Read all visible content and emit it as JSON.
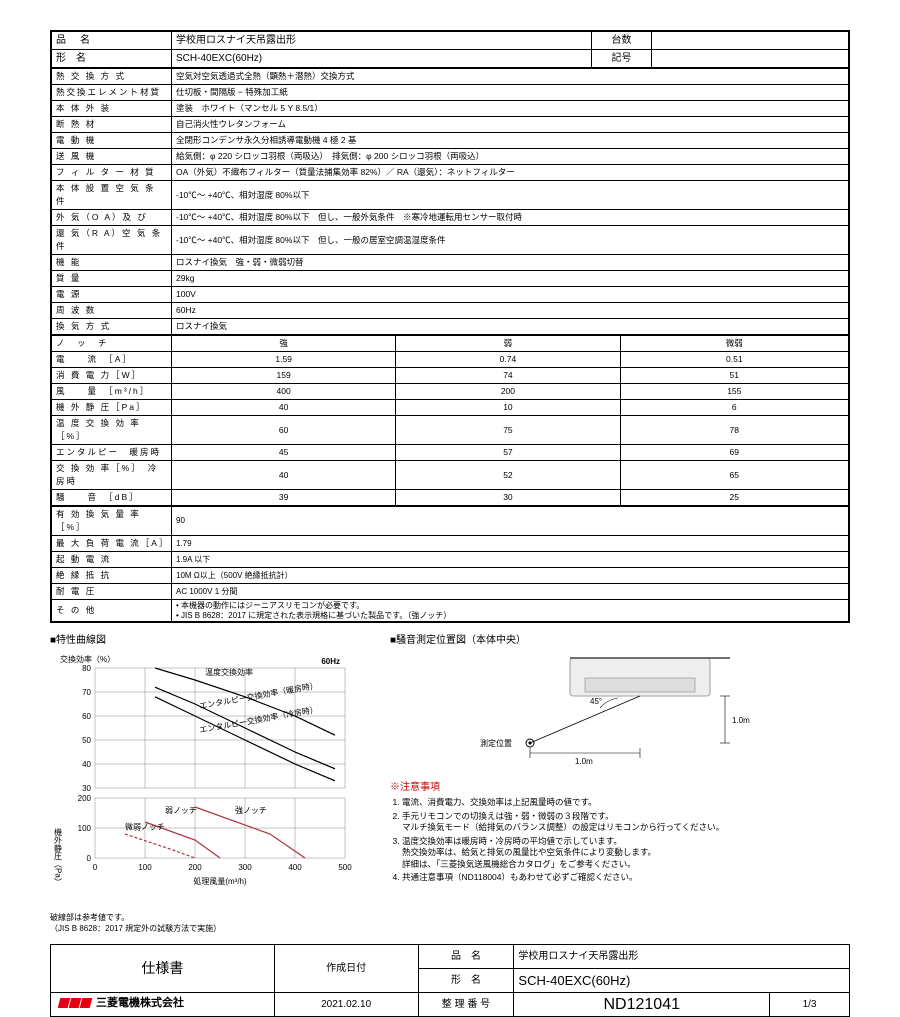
{
  "header": {
    "name_label": "品　名",
    "name": "学校用ロスナイ天吊露出形",
    "qty_label": "台数",
    "model_label": "形　名",
    "model": "SCH-40EXC(60Hz)",
    "mark_label": "記号"
  },
  "specs": [
    {
      "label": "熱 交 換 方 式",
      "value": "空気対空気透過式全熱（顕熱＋潜熱）交換方式"
    },
    {
      "label": "熱交換エレメント材質",
      "value": "仕切板・間隔版 − 特殊加工紙"
    },
    {
      "label": "本 体 外 装",
      "value": "塗装　ホワイト（マンセル 5 Y 8.5/1）"
    },
    {
      "label": "断 熱 材",
      "value": "自己消火性ウレタンフォーム"
    },
    {
      "label": "電 動 機",
      "value": "全閉形コンデンサ永久分相誘導電動機 4 極 2 基"
    },
    {
      "label": "送 風 機",
      "value": "給気側：φ 220 シロッコ羽根（両吸込）　排気側：φ 200 シロッコ羽根（両吸込）"
    },
    {
      "label": "フ ィ ル タ ー 材 質",
      "value": "OA（外気）不織布フィルター（質量法捕集効率 82%）／ RA（還気）：ネットフィルター"
    },
    {
      "label": "本 体 設 置 空 気 条 件",
      "value": "-10℃～ +40℃、相対湿度 80%以下"
    },
    {
      "label": "外 気（O A）及 び",
      "value": "-10℃～ +40℃、相対湿度 80%以下　但し、一般外気条件　※寒冷地運転用センサー取付時"
    },
    {
      "label": "還 気（R A）空 気 条 件",
      "value": "-10℃～ +40℃、相対湿度 80%以下　但し、一般の居室空調温湿度条件"
    },
    {
      "label": "機 能",
      "value": "ロスナイ換気　強・弱・微弱切替"
    },
    {
      "label": "質 量",
      "value": "29kg"
    },
    {
      "label": "電 源",
      "value": "100V"
    },
    {
      "label": "周 波 数",
      "value": "60Hz"
    },
    {
      "label": "換 気 方 式",
      "value": "ロスナイ換気"
    }
  ],
  "notch": {
    "header": [
      "ノ　ッ　チ",
      "強",
      "弱",
      "微弱"
    ],
    "rows": [
      {
        "label": "電　　流　［A］",
        "v": [
          "1.59",
          "0.74",
          "0.51"
        ]
      },
      {
        "label": "消 費 電 力［W］",
        "v": [
          "159",
          "74",
          "51"
        ]
      },
      {
        "label": "風　　量　［m³/h］",
        "v": [
          "400",
          "200",
          "155"
        ]
      },
      {
        "label": "機 外 静 圧［Pa］",
        "v": [
          "40",
          "10",
          "6"
        ]
      },
      {
        "label": "温 度 交 換 効 率　［%］",
        "v": [
          "60",
          "75",
          "78"
        ]
      },
      {
        "label": "エンタルピー　暖房時",
        "v": [
          "45",
          "57",
          "69"
        ]
      },
      {
        "label": "交 換 効 率［%］　冷房時",
        "v": [
          "40",
          "52",
          "65"
        ]
      },
      {
        "label": "騒　　音　［dB］",
        "v": [
          "39",
          "30",
          "25"
        ]
      }
    ]
  },
  "specs2": [
    {
      "label": "有 効 換 気 量 率［%］",
      "value": "90"
    },
    {
      "label": "最 大 負 荷 電 流［A］",
      "value": "1.79"
    },
    {
      "label": "起 動 電 流",
      "value": "1.9A 以下"
    },
    {
      "label": "絶 縁 抵 抗",
      "value": "10M Ω以上（500V 絶縁抵抗計）"
    },
    {
      "label": "耐 電 圧",
      "value": "AC 1000V 1 分間"
    },
    {
      "label": "そ の 他",
      "value": "• 本機器の動作にはジーニアスリモコンが必要です。\n• JIS B 8628：2017 に規定された表示規格に基づいた製品です。（強ノッチ）"
    }
  ],
  "chart": {
    "title": "■特性曲線図",
    "hz": "60Hz",
    "y1_label": "交換効率（%）",
    "y1_ticks": [
      30,
      40,
      50,
      60,
      70,
      80
    ],
    "y2_label": "機外静圧（Pa）",
    "y2_ticks": [
      0,
      100,
      200
    ],
    "x_label": "処理風量(m³/h)",
    "x_ticks": [
      0,
      100,
      200,
      300,
      400,
      500
    ],
    "curve_labels": [
      "温度交換効率",
      "エンタルピー交換効率（暖房時）",
      "エンタルピー交換効率（冷房時）"
    ],
    "notch_labels": [
      "弱ノッチ",
      "強ノッチ",
      "微弱ノッチ"
    ],
    "footnote": "破線部は参考値です。\n（JIS B 8628：2017 規定外の試験方法で実施）",
    "grid_color": "#888",
    "curve_color": "#000",
    "press_color": "#b03040"
  },
  "diagram": {
    "title": "■騒音測定位置図（本体中央）",
    "angle": "45°",
    "h": "1.0m",
    "w": "1.0m",
    "pos_label": "測定位置"
  },
  "notes": {
    "title": "※注意事項",
    "items": [
      "電流、消費電力、交換効率は上記風量時の値です。",
      "手元リモコンでの切換えは強・弱・微弱の３段階です。\nマルチ換気モード（給排気のバランス調整）の設定はリモコンから行ってください。",
      "温度交換効率は暖房時・冷房時の平均値で示しています。\n熱交換効率は、給気と排気の風量比や空気条件により変動します。\n詳細は、「三菱換気送風機総合カタログ」をご参考ください。",
      "共通注意事項（ND118004）もあわせて必ずご確認ください。"
    ]
  },
  "footer": {
    "spec_label": "仕様書",
    "date_label": "作成日付",
    "date": "2021.02.10",
    "name_label": "品　名",
    "name": "学校用ロスナイ天吊露出形",
    "model_label": "形　名",
    "model": "SCH-40EXC(60Hz)",
    "company": "三菱電機株式会社",
    "ctrl_label": "整 理 番 号",
    "ctrl_no": "ND121041",
    "page": "1/3"
  }
}
